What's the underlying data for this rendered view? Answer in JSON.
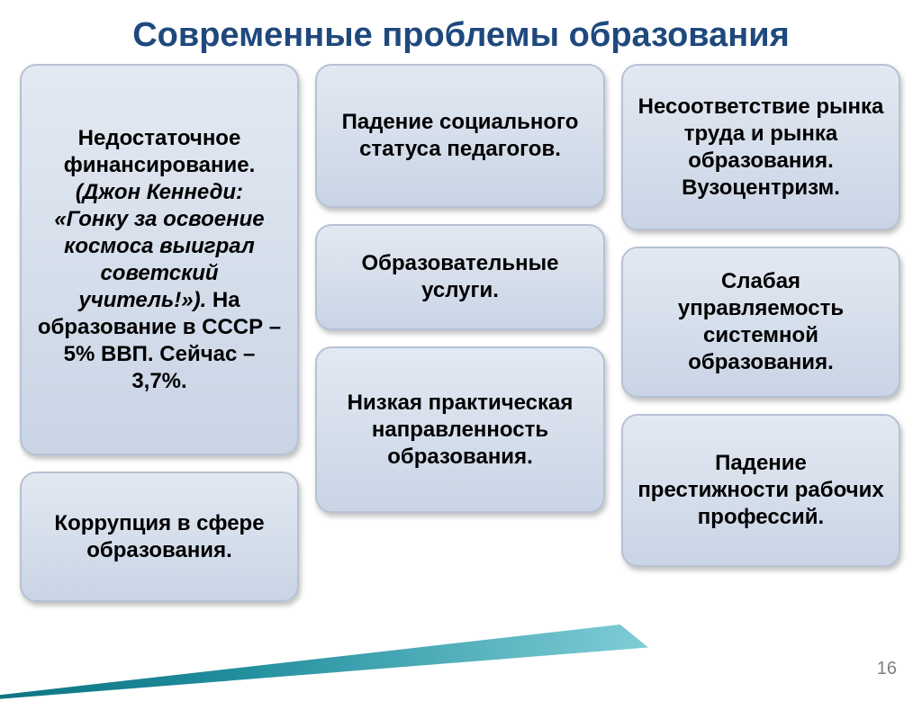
{
  "title": "Современные проблемы образования",
  "page_number": "16",
  "colors": {
    "title_color": "#1f497d",
    "box_bg_top": "#e3e9f2",
    "box_bg_bottom": "#c9d4e5",
    "box_border": "#b6c1d4",
    "triangle_start": "#0a6e7b",
    "triangle_end": "#7fcdd6",
    "text_color": "#000000",
    "page_num_color": "#7f7f7f"
  },
  "typography": {
    "title_fontsize": 38,
    "box_fontsize": 24,
    "font_weight": "bold"
  },
  "layout": {
    "columns": 3,
    "gap": 18,
    "border_radius": 18
  },
  "boxes": {
    "col1": [
      {
        "name": "box-funding",
        "plain_before": "Недостаточное финансирование. ",
        "italic": "(Джон Кеннеди: «Гонку за освоение космоса выиграл советский учитель!»).",
        "plain_after": " На образование в СССР – 5% ВВП. Сейчас – 3,7%."
      },
      {
        "name": "box-corruption",
        "text": "Коррупция в сфере образования."
      }
    ],
    "col2": [
      {
        "name": "box-status",
        "text": "Падение социального статуса педагогов."
      },
      {
        "name": "box-services",
        "text": "Образовательные услуги."
      },
      {
        "name": "box-practical",
        "text": "Низкая практическая направленность образования."
      }
    ],
    "col3": [
      {
        "name": "box-market",
        "text": "Несоответствие рынка труда и рынка образования. Вузоцентризм."
      },
      {
        "name": "box-management",
        "text": "Слабая управляемость системной образования."
      },
      {
        "name": "box-prestige",
        "text": "Падение престижности рабочих профессий."
      }
    ]
  }
}
